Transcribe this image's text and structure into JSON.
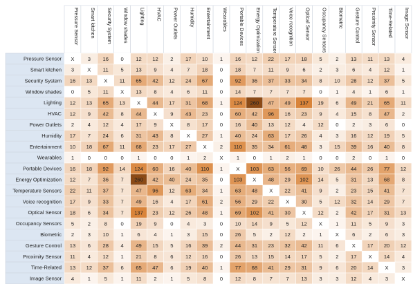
{
  "chart_data": {
    "type": "heatmap",
    "title": "",
    "xlabel": "",
    "ylabel": "",
    "diagonal_mark": "X",
    "color_low": "#ffffff",
    "color_high": "#d9843a",
    "color_max": "#8b4a16",
    "row_header_fill": "#dce6f2",
    "grid_color": "#cfd6df",
    "rows": [
      "Pressure Sensor",
      "Smart kitchen",
      "Security System",
      "Window shades",
      "Lighting",
      "HVAC",
      "Power Outlets",
      "Humidity",
      "Entertainment",
      "Wearables",
      "Portable Devices",
      "Energy Optimization",
      "Temperature Sensors",
      "Voice recognition",
      "Optical Sensor",
      "Occupancy Sensors",
      "Biometric",
      "Gesture Control",
      "Proximity Sensor",
      "Time-Related",
      "Image Sensor"
    ],
    "columns": [
      "Pressure Sensor",
      "Smart kitchen",
      "Security System",
      "Window shades",
      "Lighting",
      "HVAC",
      "Power Outlets",
      "Humidity",
      "Entertainment",
      "Wearables",
      "Portable Devices",
      "Energy Optimization",
      "Temperature Sensors",
      "Voice recognition",
      "Optical Sensor",
      "Occupancy Sensors",
      "Biometric",
      "Gesture Control",
      "Proximity Sensor",
      "Time-Related",
      "Image Sensor"
    ],
    "values": [
      [
        null,
        3,
        16,
        0,
        12,
        12,
        2,
        17,
        10,
        1,
        16,
        12,
        22,
        17,
        18,
        5,
        2,
        13,
        11,
        13,
        4
      ],
      [
        3,
        null,
        11,
        5,
        13,
        9,
        4,
        7,
        18,
        0,
        18,
        7,
        11,
        9,
        6,
        2,
        3,
        6,
        4,
        12,
        1
      ],
      [
        16,
        13,
        null,
        11,
        65,
        42,
        12,
        24,
        67,
        0,
        92,
        36,
        37,
        33,
        34,
        8,
        10,
        28,
        12,
        37,
        5
      ],
      [
        0,
        5,
        11,
        null,
        13,
        8,
        4,
        6,
        11,
        0,
        14,
        7,
        7,
        7,
        7,
        0,
        1,
        4,
        1,
        6,
        1
      ],
      [
        12,
        13,
        65,
        13,
        null,
        44,
        17,
        31,
        68,
        1,
        124,
        260,
        47,
        49,
        137,
        19,
        6,
        49,
        21,
        65,
        11
      ],
      [
        12,
        9,
        42,
        8,
        44,
        null,
        9,
        43,
        23,
        0,
        60,
        42,
        96,
        16,
        23,
        9,
        4,
        15,
        8,
        47,
        2
      ],
      [
        2,
        4,
        12,
        4,
        17,
        9,
        null,
        8,
        17,
        0,
        16,
        40,
        13,
        12,
        4,
        12,
        0,
        2,
        3,
        6,
        0
      ],
      [
        17,
        7,
        24,
        6,
        31,
        43,
        8,
        null,
        27,
        1,
        40,
        24,
        63,
        17,
        26,
        4,
        3,
        16,
        12,
        19,
        5
      ],
      [
        10,
        18,
        67,
        11,
        68,
        23,
        17,
        27,
        null,
        2,
        110,
        35,
        34,
        61,
        48,
        3,
        15,
        39,
        16,
        40,
        8
      ],
      [
        1,
        0,
        0,
        0,
        1,
        0,
        0,
        1,
        2,
        null,
        1,
        0,
        1,
        2,
        1,
        0,
        0,
        2,
        0,
        1,
        0
      ],
      [
        16,
        18,
        92,
        14,
        124,
        60,
        16,
        40,
        110,
        1,
        null,
        103,
        63,
        56,
        69,
        10,
        26,
        44,
        26,
        77,
        12
      ],
      [
        12,
        7,
        36,
        7,
        260,
        42,
        40,
        24,
        35,
        0,
        103,
        null,
        48,
        29,
        102,
        14,
        5,
        31,
        13,
        68,
        8
      ],
      [
        22,
        11,
        37,
        7,
        47,
        96,
        12,
        63,
        34,
        1,
        63,
        48,
        null,
        22,
        41,
        9,
        2,
        23,
        15,
        41,
        7
      ],
      [
        17,
        9,
        33,
        7,
        49,
        16,
        4,
        17,
        61,
        2,
        56,
        29,
        22,
        null,
        30,
        5,
        12,
        32,
        14,
        29,
        7
      ],
      [
        18,
        6,
        34,
        7,
        137,
        23,
        12,
        26,
        48,
        1,
        69,
        102,
        41,
        30,
        null,
        12,
        2,
        42,
        17,
        31,
        13
      ],
      [
        5,
        2,
        8,
        0,
        19,
        9,
        0,
        4,
        3,
        0,
        10,
        14,
        9,
        5,
        12,
        null,
        1,
        11,
        5,
        9,
        3
      ],
      [
        2,
        3,
        10,
        1,
        6,
        4,
        1,
        3,
        15,
        0,
        26,
        5,
        2,
        12,
        2,
        1,
        null,
        6,
        2,
        6,
        3
      ],
      [
        13,
        6,
        28,
        4,
        49,
        15,
        5,
        16,
        39,
        2,
        44,
        31,
        23,
        32,
        42,
        11,
        6,
        null,
        17,
        20,
        12
      ],
      [
        11,
        4,
        12,
        1,
        21,
        8,
        6,
        12,
        16,
        0,
        26,
        13,
        15,
        14,
        17,
        5,
        2,
        17,
        null,
        14,
        4
      ],
      [
        13,
        12,
        37,
        6,
        65,
        47,
        6,
        19,
        40,
        1,
        77,
        68,
        41,
        29,
        31,
        9,
        6,
        20,
        14,
        null,
        3
      ],
      [
        4,
        1,
        5,
        1,
        11,
        2,
        1,
        5,
        8,
        0,
        12,
        8,
        7,
        7,
        13,
        3,
        3,
        12,
        4,
        3,
        null
      ]
    ]
  }
}
